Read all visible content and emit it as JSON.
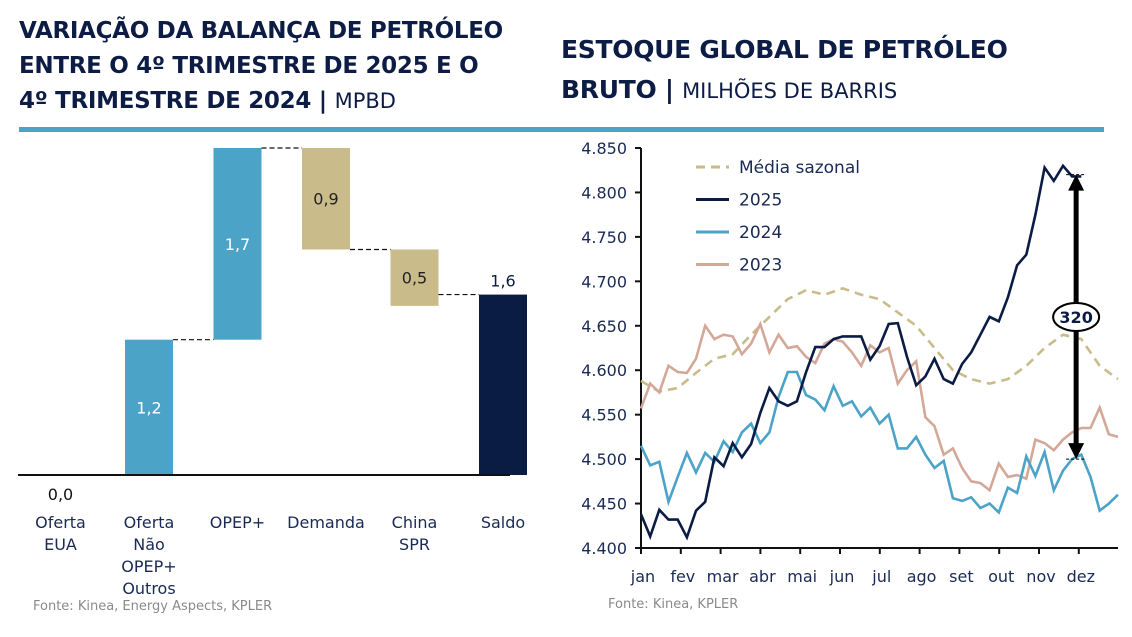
{
  "left_panel": {
    "title_bold": "VARIAÇÃO DA BALANÇA DE PETRÓLEO ENTRE O 4º TRIMESTRE DE 2025 E O 4º TRIMESTRE DE 2024 |",
    "title_line1": "VARIAÇÃO DA BALANÇA DE PETRÓLEO",
    "title_line2": "ENTRE O 4º TRIMESTRE DE 2025 E O",
    "title_line3": "4º TRIMESTRE DE 2024 |",
    "unit": "MPBD",
    "source": "Fonte: Kinea, Energy Aspects, KPLER"
  },
  "right_panel": {
    "title_line1": "ESTOQUE GLOBAL DE PETRÓLEO",
    "title_line2": "BRUTO |",
    "unit": "MILHÕES DE BARRIS",
    "source": "Fonte: Kinea, KPLER"
  },
  "colors": {
    "supply": "#4ba3c7",
    "demand": "#c9bb8a",
    "total": "#0b1c44",
    "series_2025": "#0b1c44",
    "series_2024": "#4ba3c7",
    "series_2023": "#d4a898",
    "seasonal": "#c9bb8a",
    "rule": "#4ba3c7"
  },
  "chart_data": [
    {
      "type": "bar",
      "subtype": "waterfall",
      "title": "VARIAÇÃO DA BALANÇA DE PETRÓLEO ENTRE O 4º TRIMESTRE DE 2025 E O 4º TRIMESTRE DE 2024 | MPBD",
      "categories": [
        "Oferta EUA",
        "Oferta Não OPEP+ Outros",
        "OPEP+",
        "Demanda",
        "China SPR",
        "Saldo"
      ],
      "category_lines": [
        [
          "Oferta",
          "EUA"
        ],
        [
          "Oferta",
          "Não",
          "OPEP+",
          "Outros"
        ],
        [
          "OPEP+"
        ],
        [
          "Demanda"
        ],
        [
          "China",
          "SPR"
        ],
        [
          "Saldo"
        ]
      ],
      "values": [
        0.0,
        1.2,
        1.7,
        -0.9,
        -0.5,
        1.6
      ],
      "labels": [
        "0,0",
        "1,2",
        "1,7",
        "0,9",
        "0,5",
        "1,6"
      ],
      "kinds": [
        "supply",
        "supply",
        "supply",
        "demand",
        "demand",
        "total"
      ],
      "ylim": [
        0,
        2.9
      ],
      "xlabel": "",
      "ylabel": "",
      "grid": false
    },
    {
      "type": "line",
      "title": "ESTOQUE GLOBAL DE PETRÓLEO BRUTO | MILHÕES DE BARRIS",
      "xlabel": "",
      "ylabel": "",
      "x_tick_labels": [
        "jan",
        "fev",
        "mar",
        "abr",
        "mai",
        "jun",
        "jul",
        "ago",
        "set",
        "out",
        "nov",
        "dez"
      ],
      "y_ticks": [
        4400,
        4450,
        4500,
        4550,
        4600,
        4650,
        4700,
        4750,
        4800,
        4850
      ],
      "y_tick_labels": [
        "4.400",
        "4.450",
        "4.500",
        "4.550",
        "4.600",
        "4.650",
        "4.700",
        "4.750",
        "4.800",
        "4.850"
      ],
      "ylim": [
        4400,
        4850
      ],
      "x_unit": "week",
      "xlim": [
        0,
        52
      ],
      "grid": false,
      "legend_position": "top-left",
      "series": [
        {
          "name": "Média sazonal",
          "style": "dashed",
          "color": "#c9bb8a",
          "x": [
            0,
            2,
            4,
            6,
            8,
            10,
            12,
            14,
            16,
            18,
            20,
            22,
            24,
            26,
            28,
            30,
            32,
            34,
            36,
            38,
            40,
            42,
            44,
            46,
            48,
            50,
            52
          ],
          "values": [
            4588,
            4576,
            4580,
            4597,
            4613,
            4618,
            4640,
            4660,
            4680,
            4690,
            4685,
            4692,
            4685,
            4680,
            4665,
            4650,
            4625,
            4600,
            4590,
            4585,
            4590,
            4605,
            4625,
            4640,
            4635,
            4605,
            4590
          ]
        },
        {
          "name": "2025",
          "style": "solid",
          "color": "#0b1c44",
          "x": [
            0,
            1,
            2,
            3,
            4,
            5,
            6,
            7,
            8,
            9,
            10,
            11,
            12,
            13,
            14,
            15,
            16,
            17,
            18,
            19,
            20,
            21,
            22,
            23,
            24,
            25,
            26,
            27,
            28,
            29,
            30,
            31,
            32,
            33,
            34,
            35,
            36,
            37,
            38,
            39,
            40,
            41,
            42,
            43,
            44,
            45,
            46,
            47,
            48
          ],
          "values": [
            4438,
            4413,
            4443,
            4432,
            4432,
            4412,
            4442,
            4452,
            4502,
            4492,
            4518,
            4502,
            4517,
            4552,
            4580,
            4565,
            4560,
            4565,
            4598,
            4626,
            4626,
            4635,
            4638,
            4638,
            4638,
            4612,
            4627,
            4652,
            4653,
            4615,
            4583,
            4593,
            4613,
            4590,
            4585,
            4607,
            4620,
            4640,
            4660,
            4655,
            4682,
            4718,
            4730,
            4775,
            4828,
            4813,
            4830,
            4818,
            4818
          ]
        },
        {
          "name": "2024",
          "style": "solid",
          "color": "#4ba3c7",
          "x": [
            0,
            1,
            2,
            3,
            4,
            5,
            6,
            7,
            8,
            9,
            10,
            11,
            12,
            13,
            14,
            15,
            16,
            17,
            18,
            19,
            20,
            21,
            22,
            23,
            24,
            25,
            26,
            27,
            28,
            29,
            30,
            31,
            32,
            33,
            34,
            35,
            36,
            37,
            38,
            39,
            40,
            41,
            42,
            43,
            44,
            45,
            46,
            47,
            48,
            49,
            50,
            51,
            52
          ],
          "values": [
            4515,
            4493,
            4497,
            4452,
            4480,
            4507,
            4485,
            4507,
            4497,
            4520,
            4508,
            4530,
            4540,
            4518,
            4530,
            4570,
            4598,
            4598,
            4572,
            4567,
            4555,
            4582,
            4560,
            4565,
            4548,
            4558,
            4540,
            4550,
            4512,
            4512,
            4525,
            4505,
            4490,
            4498,
            4456,
            4453,
            4457,
            4445,
            4450,
            4440,
            4468,
            4462,
            4503,
            4481,
            4508,
            4465,
            4487,
            4500,
            4505,
            4480,
            4442,
            4450,
            4460
          ]
        },
        {
          "name": "2023",
          "style": "solid",
          "color": "#d4a898",
          "x": [
            0,
            1,
            2,
            3,
            4,
            5,
            6,
            7,
            8,
            9,
            10,
            11,
            12,
            13,
            14,
            15,
            16,
            17,
            18,
            19,
            20,
            21,
            22,
            23,
            24,
            25,
            26,
            27,
            28,
            29,
            30,
            31,
            32,
            33,
            34,
            35,
            36,
            37,
            38,
            39,
            40,
            41,
            42,
            43,
            44,
            45,
            46,
            47,
            48,
            49,
            50,
            51,
            52
          ],
          "values": [
            4557,
            4585,
            4575,
            4605,
            4598,
            4597,
            4613,
            4650,
            4635,
            4640,
            4638,
            4618,
            4630,
            4652,
            4620,
            4640,
            4625,
            4627,
            4615,
            4608,
            4630,
            4635,
            4632,
            4620,
            4605,
            4628,
            4620,
            4625,
            4585,
            4600,
            4610,
            4547,
            4537,
            4505,
            4512,
            4490,
            4475,
            4473,
            4465,
            4495,
            4480,
            4482,
            4478,
            4522,
            4518,
            4510,
            4522,
            4530,
            4535,
            4535,
            4558,
            4528,
            4525
          ]
        }
      ],
      "annotation": {
        "label": "320",
        "from_value": 4500,
        "to_value": 4820,
        "x": 47,
        "style": "double-arrow"
      }
    }
  ]
}
